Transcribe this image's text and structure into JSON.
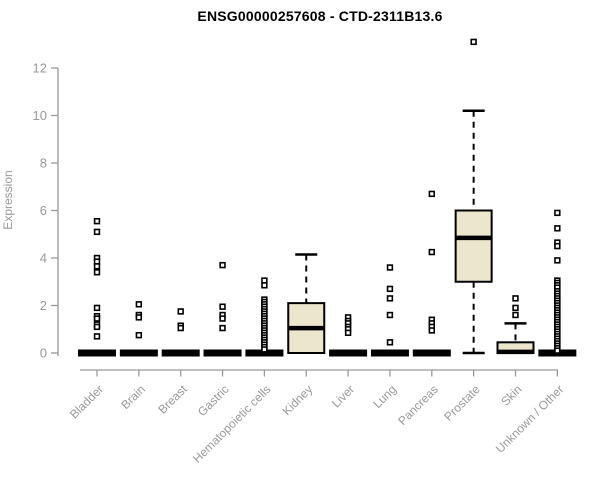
{
  "chart": {
    "title": "ENSG00000257608 - CTD-2311B13.6",
    "ylabel": "Expression"
  },
  "chart_data": {
    "type": "boxplot",
    "title": "ENSG00000257608 - CTD-2311B13.6",
    "xlabel": "",
    "ylabel": "Expression",
    "ylim": [
      0,
      13.2
    ],
    "yticks": [
      0,
      2,
      4,
      6,
      8,
      10,
      12
    ],
    "grid": false,
    "legend": "none",
    "box_fill_color": "#ece6cd",
    "box_line_color": "#000000",
    "axis_color": "#999999",
    "categories": [
      "Bladder",
      "Brain",
      "Breast",
      "Gastric",
      "Hematopoietic cells",
      "Kidney",
      "Liver",
      "Lung",
      "Pancreas",
      "Prostate",
      "Skin",
      "Unknown / Other"
    ],
    "series": [
      {
        "category": "Bladder",
        "q1": 0,
        "median": 0,
        "q3": 0,
        "whisker_low": 0,
        "whisker_high": 0,
        "outliers": [
          5.55,
          5.1,
          4.0,
          3.85,
          3.65,
          3.4,
          1.9,
          1.55,
          1.45,
          1.2,
          1.1,
          0.7
        ]
      },
      {
        "category": "Brain",
        "q1": 0,
        "median": 0,
        "q3": 0,
        "whisker_low": 0,
        "whisker_high": 0,
        "outliers": [
          2.05,
          1.6,
          1.5,
          0.75
        ]
      },
      {
        "category": "Breast",
        "q1": 0,
        "median": 0,
        "q3": 0,
        "whisker_low": 0,
        "whisker_high": 0,
        "outliers": [
          1.75,
          1.15,
          1.05
        ]
      },
      {
        "category": "Gastric",
        "q1": 0,
        "median": 0,
        "q3": 0,
        "whisker_low": 0,
        "whisker_high": 0,
        "outliers": [
          3.7,
          1.95,
          1.6,
          1.45,
          1.05
        ]
      },
      {
        "category": "Hematopoietic cells",
        "q1": 0,
        "median": 0,
        "q3": 0,
        "whisker_low": 0,
        "whisker_high": 0,
        "outliers": [
          3.05,
          2.85,
          2.25,
          2.15,
          2.05,
          1.95,
          1.85,
          1.75,
          1.65,
          1.55,
          1.45,
          1.35,
          1.25,
          1.15,
          1.05,
          0.95,
          0.85,
          0.75,
          0.65,
          0.55,
          0.45,
          0.35,
          0.25,
          0.15
        ]
      },
      {
        "category": "Kidney",
        "q1": 0,
        "median": 1.05,
        "q3": 2.1,
        "whisker_low": 0,
        "whisker_high": 4.15,
        "outliers": []
      },
      {
        "category": "Liver",
        "q1": 0,
        "median": 0,
        "q3": 0,
        "whisker_low": 0,
        "whisker_high": 0,
        "outliers": [
          1.5,
          1.35,
          1.25,
          1.1,
          1.0,
          0.85
        ]
      },
      {
        "category": "Lung",
        "q1": 0,
        "median": 0,
        "q3": 0,
        "whisker_low": 0,
        "whisker_high": 0,
        "outliers": [
          3.6,
          2.7,
          2.3,
          1.6,
          0.45
        ]
      },
      {
        "category": "Pancreas",
        "q1": 0,
        "median": 0,
        "q3": 0,
        "whisker_low": 0,
        "whisker_high": 0,
        "outliers": [
          6.7,
          4.25,
          1.4,
          1.25,
          1.1,
          0.95
        ]
      },
      {
        "category": "Prostate",
        "q1": 3.0,
        "median": 4.85,
        "q3": 6.0,
        "whisker_low": 0,
        "whisker_high": 10.2,
        "outliers": [
          13.1
        ]
      },
      {
        "category": "Skin",
        "q1": 0,
        "median": 0.05,
        "q3": 0.45,
        "whisker_low": 0,
        "whisker_high": 1.25,
        "outliers": [
          2.3,
          1.9,
          1.6
        ]
      },
      {
        "category": "Unknown / Other",
        "q1": 0,
        "median": 0,
        "q3": 0,
        "whisker_low": 0,
        "whisker_high": 0,
        "outliers": [
          5.9,
          5.25,
          4.65,
          4.5,
          3.9,
          3.05,
          2.95,
          2.85,
          2.75,
          2.6,
          2.5,
          2.4,
          2.3,
          2.2,
          2.1,
          2.0,
          1.9,
          1.8,
          1.7,
          1.6,
          1.5,
          1.4,
          1.3,
          1.2,
          1.1,
          1.0,
          0.9,
          0.8,
          0.7,
          0.6,
          0.5,
          0.4,
          0.3,
          0.2,
          0.1
        ]
      }
    ]
  }
}
